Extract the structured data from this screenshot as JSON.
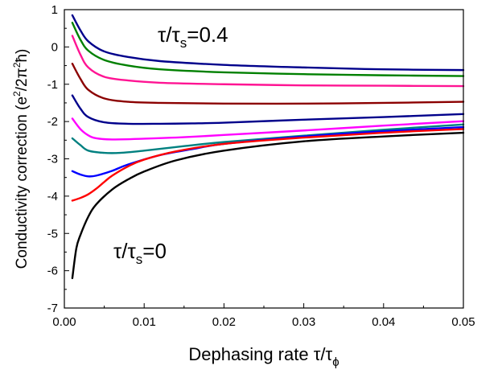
{
  "chart_data": {
    "type": "line",
    "xlabel": {
      "base": "Dephasing rate τ/τ",
      "sub": "ϕ"
    },
    "ylabel": {
      "base": "Conductivity correction (e",
      "sup1": "2",
      "mid": "/2π",
      "sup2": "2",
      "end": "ħ)"
    },
    "xlim": [
      0.0,
      0.05
    ],
    "ylim": [
      -7,
      1
    ],
    "xticks": [
      "0.00",
      "0.01",
      "0.02",
      "0.03",
      "0.04",
      "0.05"
    ],
    "yticks": [
      "-7",
      "-6",
      "-5",
      "-4",
      "-3",
      "-2",
      "-1",
      "0",
      "1"
    ],
    "grid": false,
    "annotations": [
      {
        "id": "top",
        "base": "τ/τ",
        "sub": "s",
        "suffix": "=0.4"
      },
      {
        "id": "bottom",
        "base": "τ/τ",
        "sub": "s",
        "suffix": "=0"
      }
    ],
    "series": [
      {
        "color": "#00008b",
        "x": [
          0.001,
          0.002,
          0.003,
          0.005,
          0.008,
          0.012,
          0.02,
          0.03,
          0.04,
          0.05
        ],
        "y": [
          0.85,
          0.45,
          0.15,
          -0.12,
          -0.27,
          -0.38,
          -0.48,
          -0.55,
          -0.6,
          -0.62
        ]
      },
      {
        "color": "#008000",
        "x": [
          0.001,
          0.002,
          0.003,
          0.005,
          0.008,
          0.012,
          0.02,
          0.03,
          0.04,
          0.05
        ],
        "y": [
          0.65,
          0.2,
          -0.1,
          -0.35,
          -0.5,
          -0.6,
          -0.68,
          -0.73,
          -0.76,
          -0.78
        ]
      },
      {
        "color": "#ff1493",
        "x": [
          0.001,
          0.002,
          0.003,
          0.005,
          0.008,
          0.012,
          0.02,
          0.03,
          0.04,
          0.05
        ],
        "y": [
          0.3,
          -0.2,
          -0.55,
          -0.8,
          -0.9,
          -0.96,
          -1.0,
          -1.03,
          -1.04,
          -1.05
        ]
      },
      {
        "color": "#8b0000",
        "x": [
          0.001,
          0.002,
          0.003,
          0.005,
          0.008,
          0.012,
          0.02,
          0.03,
          0.04,
          0.05
        ],
        "y": [
          -0.45,
          -0.85,
          -1.15,
          -1.38,
          -1.47,
          -1.5,
          -1.52,
          -1.52,
          -1.5,
          -1.47
        ]
      },
      {
        "color": "#00008b",
        "x": [
          0.001,
          0.002,
          0.003,
          0.005,
          0.008,
          0.012,
          0.016,
          0.02,
          0.03,
          0.04,
          0.05
        ],
        "y": [
          -1.3,
          -1.65,
          -1.88,
          -2.02,
          -2.06,
          -2.06,
          -2.05,
          -2.03,
          -1.95,
          -1.88,
          -1.8
        ]
      },
      {
        "color": "#ff00ff",
        "x": [
          0.001,
          0.002,
          0.003,
          0.004,
          0.006,
          0.01,
          0.015,
          0.02,
          0.03,
          0.04,
          0.05
        ],
        "y": [
          -1.92,
          -2.2,
          -2.37,
          -2.45,
          -2.48,
          -2.46,
          -2.42,
          -2.36,
          -2.24,
          -2.11,
          -1.99
        ]
      },
      {
        "color": "#008080",
        "x": [
          0.001,
          0.002,
          0.003,
          0.005,
          0.007,
          0.01,
          0.015,
          0.02,
          0.03,
          0.04,
          0.05
        ],
        "y": [
          -2.45,
          -2.63,
          -2.78,
          -2.84,
          -2.84,
          -2.78,
          -2.66,
          -2.55,
          -2.38,
          -2.22,
          -2.08
        ]
      },
      {
        "color": "#0000ff",
        "x": [
          0.001,
          0.002,
          0.003,
          0.004,
          0.006,
          0.008,
          0.012,
          0.016,
          0.02,
          0.03,
          0.04,
          0.05
        ],
        "y": [
          -3.33,
          -3.42,
          -3.47,
          -3.45,
          -3.32,
          -3.15,
          -2.9,
          -2.74,
          -2.6,
          -2.4,
          -2.26,
          -2.15
        ]
      },
      {
        "color": "#ff0000",
        "x": [
          0.001,
          0.002,
          0.003,
          0.004,
          0.005,
          0.006,
          0.008,
          0.01,
          0.014,
          0.02,
          0.03,
          0.04,
          0.05
        ],
        "y": [
          -4.12,
          -4.05,
          -3.95,
          -3.8,
          -3.62,
          -3.45,
          -3.2,
          -3.02,
          -2.8,
          -2.6,
          -2.43,
          -2.3,
          -2.2
        ]
      },
      {
        "color": "#000000",
        "x": [
          0.001,
          0.0015,
          0.002,
          0.003,
          0.004,
          0.006,
          0.008,
          0.01,
          0.014,
          0.02,
          0.03,
          0.04,
          0.05
        ],
        "y": [
          -6.2,
          -5.4,
          -5.05,
          -4.55,
          -4.22,
          -3.82,
          -3.55,
          -3.34,
          -3.04,
          -2.78,
          -2.53,
          -2.4,
          -2.3
        ]
      }
    ]
  }
}
